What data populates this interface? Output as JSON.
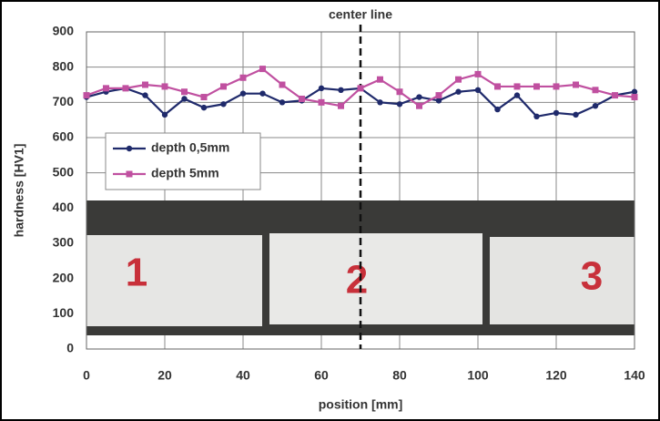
{
  "chart_data": {
    "type": "line",
    "x_label": "position [mm]",
    "y_label": "hardness [HV1]",
    "x": [
      0,
      5,
      10,
      15,
      20,
      25,
      30,
      35,
      40,
      45,
      50,
      55,
      60,
      65,
      70,
      75,
      80,
      85,
      90,
      95,
      100,
      105,
      110,
      115,
      120,
      125,
      130,
      135,
      140
    ],
    "series": [
      {
        "name": "depth 0,5mm",
        "color": "#1f2a6b",
        "marker": "circle",
        "values": [
          715,
          730,
          740,
          720,
          665,
          710,
          685,
          695,
          725,
          725,
          700,
          705,
          740,
          735,
          740,
          700,
          695,
          715,
          705,
          730,
          735,
          680,
          720,
          660,
          670,
          665,
          690,
          720,
          730
        ]
      },
      {
        "name": "depth 5mm",
        "color": "#c050a0",
        "marker": "square",
        "values": [
          720,
          740,
          740,
          750,
          745,
          730,
          715,
          745,
          770,
          795,
          750,
          710,
          700,
          690,
          740,
          765,
          730,
          690,
          720,
          765,
          780,
          745,
          745,
          745,
          745,
          750,
          735,
          720,
          715
        ]
      }
    ],
    "xlim": [
      0,
      140
    ],
    "xticks": [
      0,
      20,
      40,
      60,
      80,
      100,
      120,
      140
    ],
    "ylim": [
      0,
      900
    ],
    "yticks": [
      0,
      100,
      200,
      300,
      400,
      500,
      600,
      700,
      800,
      900
    ],
    "grid": true,
    "legend": "left",
    "center_line": {
      "x": 70,
      "label": "center line"
    },
    "photo_labels": [
      "1",
      "2",
      "3"
    ]
  }
}
